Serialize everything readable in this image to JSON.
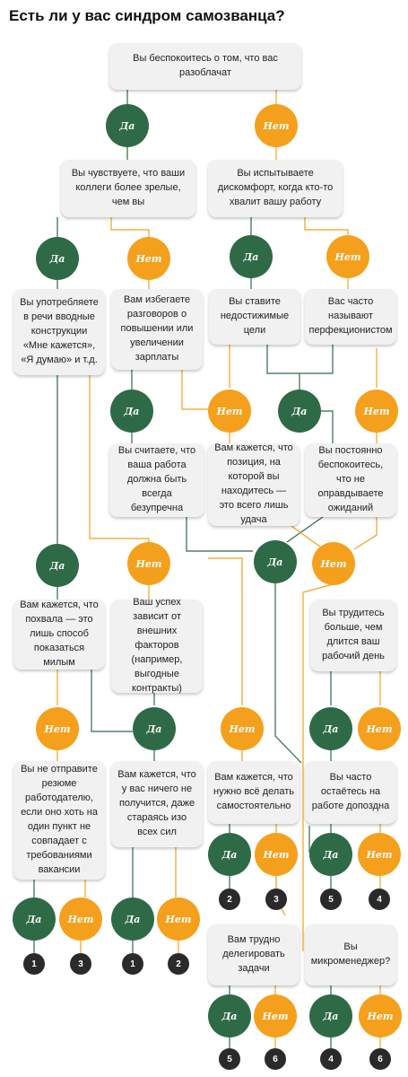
{
  "title": "Есть ли у вас синдром самозванца?",
  "yes": "Да",
  "no": "Нет",
  "colors": {
    "yes": "#2f6a46",
    "no": "#f5a01d",
    "box": "#f1f1f1",
    "result": "#2a2a2a"
  },
  "questions": {
    "q1": "Вы беспокоитесь о том, что вас разоблачат",
    "q2": "Вы чувствуете, что ваши коллеги более зрелые, чем вы",
    "q3": "Вы испытываете дискомфорт, когда кто-то хвалит вашу работу",
    "q4": "Вы употребляете в речи вводные конструкции «Мне кажется», «Я думаю» и т.д.",
    "q5": "Вам избегаете разговоров о повышении или увеличении зарплаты",
    "q6": "Вы ставите недостижимые цели",
    "q7": "Вас часто называют перфекционистом",
    "q8": "Вы считаете, что ваша работа должна быть всегда безупречна",
    "q9": "Вам кажется, что позиция, на которой вы находитесь — это всего лишь удача",
    "q10": "Вы постоянно беспокоитесь, что не оправдываете ожиданий",
    "q11": "Вам кажется, что похвала — это лишь способ показаться милым",
    "q12": "Ваш успех зависит от внешних факторов (например, выгодные контракты)",
    "q13": "Вы трудитесь больше, чем длится ваш рабочий день",
    "q14": "Вы не отправите резюме работодателю, если оно хоть на один пункт не совпадает с требованиями вакансии",
    "q15": "Вам кажется, что у вас ничего не получится, даже стараясь изо всех сил",
    "q16": "Вам кажется, что нужно всё делать самостоятельно",
    "q17": "Вы часто остаётесь на работе допоздна",
    "q18": "Вам трудно делегировать задачи",
    "q19": "Вы микроменеджер?"
  },
  "results": [
    "1",
    "3",
    "1",
    "2",
    "2",
    "3",
    "5",
    "4",
    "5",
    "6",
    "4",
    "6"
  ]
}
